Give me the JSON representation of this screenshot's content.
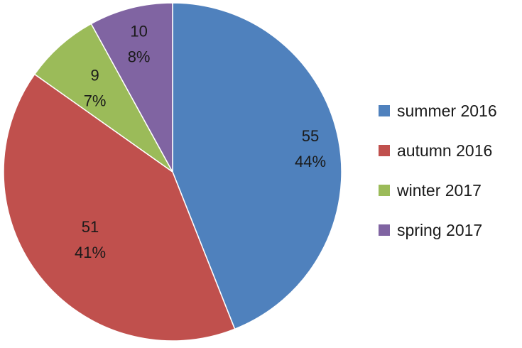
{
  "chart_data": {
    "type": "pie",
    "title": "",
    "categories": [
      "summer 2016",
      "autumn 2016",
      "winter 2017",
      "spring 2017"
    ],
    "values": [
      55,
      51,
      9,
      10
    ],
    "percent_labels": [
      "44%",
      "41%",
      "7%",
      "8%"
    ],
    "colors": [
      "#4F81BD",
      "#C0504D",
      "#9BBB59",
      "#8064A2"
    ],
    "start_angle": "12 o'clock",
    "direction": "clockwise",
    "legend_position": "right",
    "data_labels": "value and percent"
  }
}
